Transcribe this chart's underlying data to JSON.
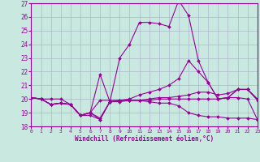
{
  "xlabel": "Windchill (Refroidissement éolien,°C)",
  "background_color": "#c8e8e0",
  "grid_color": "#aab8cc",
  "line_color": "#990099",
  "xlim": [
    0,
    23
  ],
  "ylim": [
    18,
    27
  ],
  "yticks": [
    18,
    19,
    20,
    21,
    22,
    23,
    24,
    25,
    26,
    27
  ],
  "xticks": [
    0,
    1,
    2,
    3,
    4,
    5,
    6,
    7,
    8,
    9,
    10,
    11,
    12,
    13,
    14,
    15,
    16,
    17,
    18,
    19,
    20,
    21,
    22,
    23
  ],
  "series": [
    [
      20.1,
      20.0,
      20.0,
      20.0,
      19.6,
      18.8,
      18.8,
      18.5,
      19.8,
      19.9,
      19.9,
      19.9,
      19.8,
      19.7,
      19.7,
      19.5,
      19.0,
      18.8,
      18.7,
      18.7,
      18.6,
      18.6,
      18.6,
      18.5
    ],
    [
      20.1,
      20.0,
      19.6,
      19.7,
      19.6,
      18.8,
      19.0,
      18.6,
      19.8,
      19.8,
      19.9,
      19.9,
      19.9,
      20.0,
      20.0,
      20.0,
      20.0,
      20.0,
      20.0,
      20.0,
      20.1,
      20.1,
      20.0,
      18.5
    ],
    [
      20.1,
      20.0,
      19.6,
      19.7,
      19.6,
      18.8,
      19.0,
      19.9,
      19.9,
      19.9,
      19.9,
      19.9,
      20.0,
      20.1,
      20.1,
      20.2,
      20.3,
      20.5,
      20.5,
      20.3,
      20.4,
      20.7,
      20.7,
      20.0
    ],
    [
      20.1,
      20.0,
      19.6,
      19.7,
      19.6,
      18.8,
      19.0,
      21.8,
      19.8,
      19.9,
      20.0,
      20.3,
      20.5,
      20.7,
      21.0,
      21.5,
      22.8,
      22.0,
      21.2,
      20.0,
      20.1,
      20.7,
      20.7,
      20.0
    ],
    [
      20.1,
      20.0,
      19.6,
      19.7,
      19.6,
      18.8,
      19.0,
      18.5,
      19.8,
      23.0,
      24.0,
      25.6,
      25.6,
      25.5,
      25.3,
      27.2,
      26.1,
      22.8,
      21.2,
      20.0,
      20.1,
      20.7,
      20.7,
      19.9
    ]
  ]
}
